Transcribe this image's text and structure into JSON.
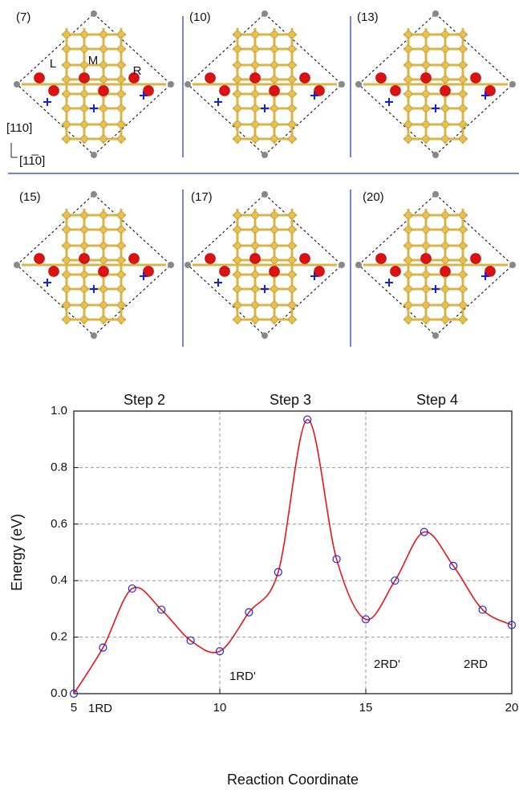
{
  "panels": [
    "(7)",
    "(10)",
    "(13)",
    "(15)",
    "(17)",
    "(20)"
  ],
  "site_labels": [
    "L",
    "M",
    "R"
  ],
  "direction_labels": [
    "[110]",
    "[11̅0]"
  ],
  "chart_data": {
    "type": "line",
    "x_label": "Reaction Coordinate",
    "y_label": "Energy (eV)",
    "x": [
      5,
      6,
      7,
      8,
      9,
      10,
      11,
      12,
      13,
      14,
      15,
      16,
      17,
      18,
      19,
      20
    ],
    "series": [
      {
        "color": "#e8141b",
        "marker_color": "#2222dd",
        "values": [
          0.0,
          0.163,
          0.372,
          0.297,
          0.188,
          0.15,
          0.288,
          0.43,
          0.97,
          0.476,
          0.263,
          0.4,
          0.572,
          0.452,
          0.297,
          0.243
        ]
      }
    ],
    "xlim": [
      5,
      20
    ],
    "xticks": [
      5,
      10,
      15,
      20
    ],
    "ylim": [
      0,
      1.0
    ],
    "yticks": [
      {
        "value": 0,
        "label": "0.0"
      },
      0.2,
      0.4,
      0.6,
      0.8,
      {
        "value": 1.0,
        "label": "1.0"
      }
    ],
    "grid": true,
    "steps": [
      "Step 2",
      "Step 3",
      "Step 4"
    ],
    "annotations": [
      "1RD",
      "1RD'",
      "2RD'",
      "2RD"
    ]
  }
}
